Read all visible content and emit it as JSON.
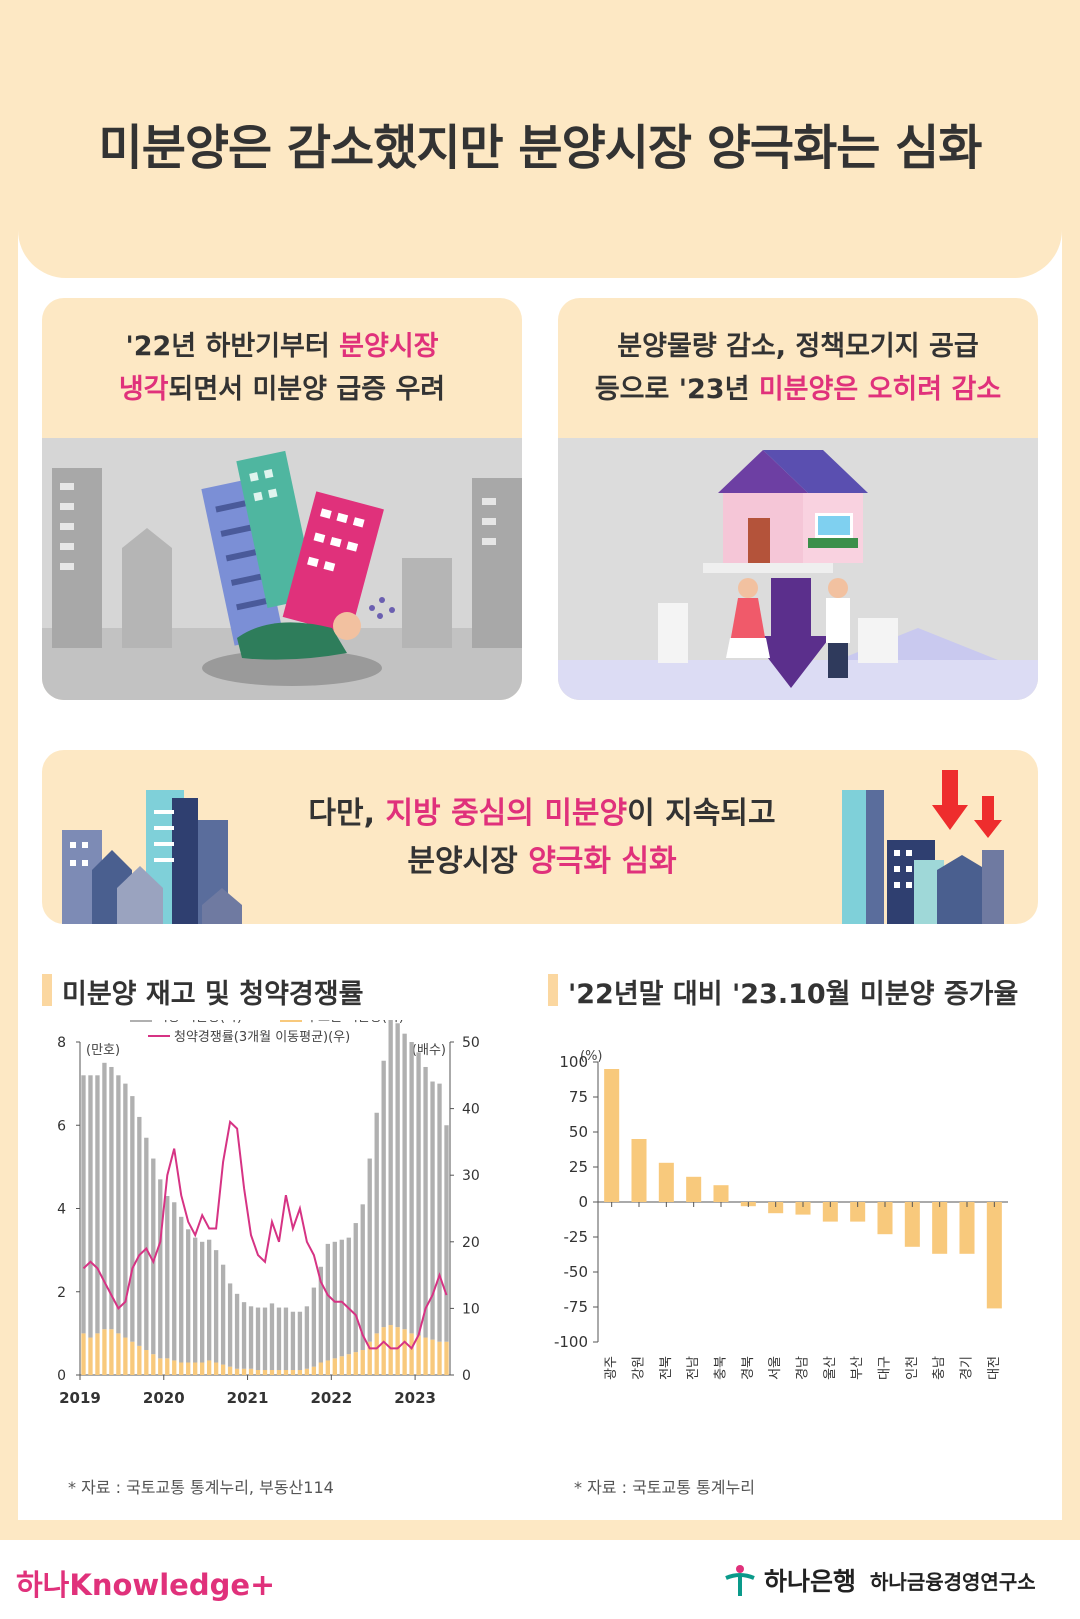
{
  "title": "미분양은 감소했지만 분양시장 양극화는 심화",
  "card1": {
    "line1_a": "'22년 하반기부터 ",
    "line1_b": "분양시장",
    "line2_a": "냉각",
    "line2_b": "되면서 미분양 급증 우려"
  },
  "card2": {
    "line1": "분양물량 감소, 정책모기지 공급",
    "line2_a": "등으로 '23년 ",
    "line2_b": "미분양은 오히려 감소"
  },
  "banner": {
    "line1_a": "다만, ",
    "line1_b": "지방 중심의 미분양",
    "line1_c": "이 지속되고",
    "line2_a": "분양시장 ",
    "line2_b": "양극화 심화"
  },
  "section1_title": "미분양 재고 및 청약경쟁률",
  "section2_title": "'22년말 대비 '23.10월 미분양 증가율",
  "note1": "* 자료 : 국토교통 통계누리, 부동산114",
  "note2": "* 자료 : 국토교통 통계누리",
  "footer": {
    "left_logo_a": "하나",
    "left_logo_b": "Knowledge",
    "right_bank": "하나은행",
    "right_institute": "하나금융경영연구소"
  },
  "colors": {
    "pink": "#e0317b",
    "gray_bar": "#b0b0b0",
    "orange_bar": "#f8c97c",
    "line": "#d63384",
    "bg": "#fde8c4"
  },
  "chart_data": [
    {
      "type": "bar",
      "title": "미분양 재고 및 청약경쟁률",
      "left_unit": "(만호)",
      "right_unit": "(배수)",
      "ylim_left": [
        0,
        8
      ],
      "ylim_right": [
        0,
        50
      ],
      "yticks_left": [
        "0",
        "2",
        "4",
        "6",
        "8"
      ],
      "yticks_right": [
        "0",
        "10",
        "20",
        "30",
        "40",
        "50"
      ],
      "xticks": [
        "2019",
        "2020",
        "2021",
        "2022",
        "2023"
      ],
      "legend": [
        "지방 미분양(좌)",
        "수도권 미분양(좌)",
        "청약경쟁률(3개월 이동평균)(우)"
      ],
      "series": [
        {
          "name": "지방 미분양(좌)",
          "values": [
            6.2,
            6.3,
            6.2,
            6.4,
            6.3,
            6.2,
            6.1,
            5.9,
            5.5,
            5.1,
            4.7,
            4.3,
            3.9,
            3.8,
            3.5,
            3.2,
            3.0,
            2.9,
            2.9,
            2.7,
            2.4,
            2.0,
            1.8,
            1.6,
            1.5,
            1.5,
            1.5,
            1.6,
            1.5,
            1.5,
            1.4,
            1.4,
            1.5,
            1.9,
            2.3,
            2.8,
            2.8,
            2.8,
            2.8,
            3.1,
            3.5,
            4.4,
            5.3,
            6.4,
            7.6,
            7.3,
            7.1,
            7.0,
            6.8,
            6.5,
            6.2,
            6.2,
            5.2
          ]
        },
        {
          "name": "수도권 미분양(좌)",
          "values": [
            1.0,
            0.9,
            1.0,
            1.1,
            1.1,
            1.0,
            0.9,
            0.8,
            0.7,
            0.6,
            0.5,
            0.4,
            0.4,
            0.35,
            0.3,
            0.3,
            0.3,
            0.3,
            0.35,
            0.3,
            0.25,
            0.2,
            0.15,
            0.15,
            0.15,
            0.12,
            0.12,
            0.12,
            0.12,
            0.12,
            0.12,
            0.12,
            0.15,
            0.2,
            0.3,
            0.35,
            0.4,
            0.45,
            0.5,
            0.55,
            0.6,
            0.8,
            1.0,
            1.15,
            1.2,
            1.15,
            1.1,
            1.0,
            0.95,
            0.9,
            0.85,
            0.8,
            0.8
          ]
        },
        {
          "name": "청약경쟁률(3개월 이동평균)(우)",
          "values": [
            16,
            17,
            16,
            14,
            12,
            10,
            11,
            16,
            18,
            19,
            17,
            20,
            30,
            34,
            27,
            23,
            21,
            24,
            22,
            22,
            32,
            38,
            37,
            28,
            21,
            18,
            17,
            23,
            20,
            27,
            22,
            25,
            20,
            18,
            14,
            12,
            11,
            11,
            10,
            9,
            6,
            4,
            4,
            5,
            4,
            4,
            5,
            4,
            6,
            10,
            12,
            15,
            12
          ]
        }
      ]
    },
    {
      "type": "bar",
      "title": "'22년말 대비 '23.10월 미분양 증가율",
      "unit": "(%)",
      "ylim": [
        -100,
        100
      ],
      "yticks": [
        "100",
        "75",
        "50",
        "25",
        "0",
        "-25",
        "-50",
        "-75",
        "-100"
      ],
      "categories": [
        "광주",
        "강원",
        "전북",
        "전남",
        "충북",
        "경북",
        "서울",
        "경남",
        "울산",
        "부산",
        "대구",
        "인천",
        "충남",
        "경기",
        "대전"
      ],
      "values": [
        95,
        45,
        28,
        18,
        12,
        -3,
        -8,
        -9,
        -14,
        -14,
        -23,
        -32,
        -37,
        -37,
        -76
      ]
    }
  ]
}
